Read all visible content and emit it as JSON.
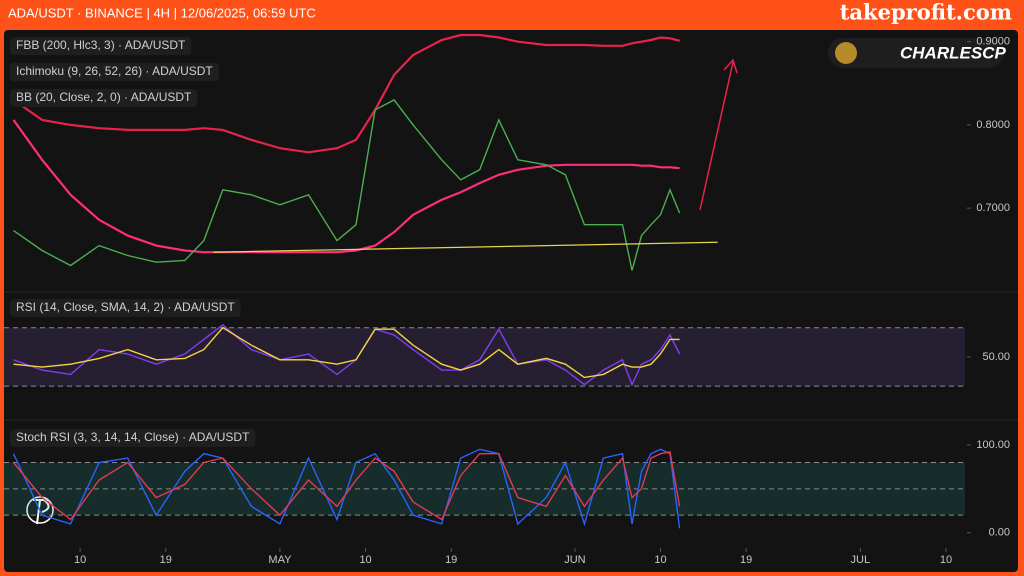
{
  "header": "ADA/USDT · BINANCE | 4H | 12/06/2025, 06:59 UTC",
  "brand": "takeprofit.com",
  "watermark": "CHARLESCP",
  "chart_data": [
    {
      "type": "line",
      "indicators": [
        "FBB (200, Hlc3, 3) · ADA/USDT",
        "Ichimoku (9, 26, 52, 26) · ADA/USDT",
        "BB (20, Close, 2, 0) · ADA/USDT"
      ],
      "x": [
        "2025-04-03",
        "2025-04-06",
        "2025-04-09",
        "2025-04-12",
        "2025-04-15",
        "2025-04-18",
        "2025-04-21",
        "2025-04-23",
        "2025-04-25",
        "2025-04-28",
        "2025-05-01",
        "2025-05-04",
        "2025-05-07",
        "2025-05-09",
        "2025-05-11",
        "2025-05-13",
        "2025-05-15",
        "2025-05-18",
        "2025-05-20",
        "2025-05-22",
        "2025-05-24",
        "2025-05-26",
        "2025-05-29",
        "2025-05-31",
        "2025-06-02",
        "2025-06-04",
        "2025-06-06",
        "2025-06-07",
        "2025-06-08",
        "2025-06-09",
        "2025-06-10",
        "2025-06-11",
        "2025-06-12"
      ],
      "series": [
        {
          "color": "#e8234a",
          "values": [
            0.83,
            0.806,
            0.8,
            0.796,
            0.794,
            0.794,
            0.794,
            0.796,
            0.794,
            0.782,
            0.772,
            0.767,
            0.772,
            0.782,
            0.818,
            0.86,
            0.884,
            0.902,
            0.908,
            0.908,
            0.905,
            0.9,
            0.896,
            0.896,
            0.896,
            0.895,
            0.895,
            0.898,
            0.9,
            0.902,
            0.905,
            0.904,
            0.901
          ]
        },
        {
          "color": "#ff2d7a",
          "values": [
            0.806,
            0.758,
            0.716,
            0.686,
            0.667,
            0.655,
            0.649,
            0.647,
            0.647,
            0.647,
            0.647,
            0.647,
            0.647,
            0.649,
            0.655,
            0.671,
            0.692,
            0.71,
            0.719,
            0.73,
            0.74,
            0.746,
            0.751,
            0.752,
            0.752,
            0.752,
            0.752,
            0.752,
            0.751,
            0.751,
            0.749,
            0.749,
            0.748
          ]
        },
        {
          "color": "#4caf50",
          "values": [
            0.673,
            0.649,
            0.631,
            0.655,
            0.643,
            0.635,
            0.637,
            0.661,
            0.722,
            0.716,
            0.704,
            0.716,
            0.661,
            0.68,
            0.818,
            0.83,
            0.8,
            0.758,
            0.734,
            0.746,
            0.806,
            0.758,
            0.752,
            0.74,
            0.68,
            0.68,
            0.68,
            0.625,
            0.667,
            0.68,
            0.692,
            0.722,
            0.694
          ]
        }
      ],
      "trendline": {
        "color": "#e8d44d",
        "x": [
          "2025-04-24",
          "2025-06-16"
        ],
        "values": [
          0.647,
          0.659
        ]
      },
      "xlim": [
        "2025-04-02",
        "2025-07-12"
      ],
      "ylim": [
        0.604,
        0.914
      ],
      "yticks": [
        {
          "value": 0.7,
          "label": "0.7000"
        },
        {
          "value": 0.8,
          "label": "0.8000"
        },
        {
          "value": 0.9,
          "label": "0.9000"
        }
      ]
    },
    {
      "type": "line",
      "title": "RSI (14, Close, SMA, 14, 2) · ADA/USDT",
      "x": [
        "2025-04-03",
        "2025-04-06",
        "2025-04-09",
        "2025-04-12",
        "2025-04-15",
        "2025-04-18",
        "2025-04-21",
        "2025-04-23",
        "2025-04-25",
        "2025-04-28",
        "2025-05-01",
        "2025-05-04",
        "2025-05-07",
        "2025-05-09",
        "2025-05-11",
        "2025-05-13",
        "2025-05-15",
        "2025-05-18",
        "2025-05-20",
        "2025-05-22",
        "2025-05-24",
        "2025-05-26",
        "2025-05-29",
        "2025-05-31",
        "2025-06-02",
        "2025-06-04",
        "2025-06-06",
        "2025-06-07",
        "2025-06-08",
        "2025-06-09",
        "2025-06-10",
        "2025-06-11",
        "2025-06-12"
      ],
      "series": [
        {
          "color": "#7e3ff2",
          "values": [
            48,
            41,
            38,
            55,
            52,
            45,
            52,
            62,
            72,
            55,
            48,
            52,
            38,
            48,
            69,
            65,
            55,
            41,
            41,
            48,
            69,
            45,
            48,
            41,
            31,
            41,
            48,
            31,
            45,
            48,
            55,
            65,
            52
          ]
        },
        {
          "color": "#f5d442",
          "values": [
            45,
            43,
            45,
            49,
            55,
            48,
            49,
            55,
            70,
            58,
            48,
            48,
            45,
            48,
            69,
            69,
            58,
            45,
            41,
            45,
            55,
            45,
            49,
            45,
            36,
            38,
            45,
            43,
            43,
            45,
            52,
            62,
            62
          ]
        }
      ],
      "band": {
        "color": "#7e57c2",
        "values": [
          30,
          70
        ]
      },
      "xlim": [
        "2025-04-02",
        "2025-07-12"
      ],
      "ylim": [
        15,
        89
      ],
      "yticks": [
        {
          "value": 50,
          "label": "50.00"
        }
      ]
    },
    {
      "type": "line",
      "title": "Stoch RSI (3, 3, 14, 14, Close) · ADA/USDT",
      "x": [
        "2025-04-03",
        "2025-04-06",
        "2025-04-09",
        "2025-04-12",
        "2025-04-15",
        "2025-04-18",
        "2025-04-21",
        "2025-04-23",
        "2025-04-25",
        "2025-04-28",
        "2025-05-01",
        "2025-05-04",
        "2025-05-07",
        "2025-05-09",
        "2025-05-11",
        "2025-05-13",
        "2025-05-15",
        "2025-05-18",
        "2025-05-20",
        "2025-05-22",
        "2025-05-24",
        "2025-05-26",
        "2025-05-29",
        "2025-05-31",
        "2025-06-02",
        "2025-06-04",
        "2025-06-06",
        "2025-06-07",
        "2025-06-08",
        "2025-06-09",
        "2025-06-10",
        "2025-06-11",
        "2025-06-12"
      ],
      "series": [
        {
          "color": "#2962ff",
          "values": [
            90,
            20,
            10,
            80,
            85,
            20,
            70,
            90,
            85,
            30,
            10,
            85,
            15,
            80,
            90,
            60,
            20,
            10,
            85,
            95,
            90,
            10,
            40,
            80,
            10,
            85,
            90,
            10,
            70,
            90,
            95,
            90,
            5
          ]
        },
        {
          "color": "#e53950",
          "values": [
            80,
            40,
            15,
            60,
            80,
            40,
            55,
            80,
            85,
            50,
            20,
            60,
            30,
            60,
            85,
            70,
            35,
            15,
            65,
            90,
            90,
            40,
            30,
            65,
            30,
            60,
            85,
            40,
            50,
            85,
            90,
            92,
            30
          ]
        }
      ],
      "band": {
        "color": "#26a69a",
        "values": [
          20,
          50,
          80
        ]
      },
      "xlim": [
        "2025-04-02",
        "2025-07-12"
      ],
      "ylim": [
        -14,
        117
      ],
      "yticks": [
        {
          "value": 0,
          "label": "0.00"
        },
        {
          "value": 100,
          "label": "100.00"
        }
      ],
      "xticks": [
        {
          "value": "2025-04-10",
          "label": "10"
        },
        {
          "value": "2025-04-19",
          "label": "19"
        },
        {
          "value": "2025-05-01",
          "label": "MAY"
        },
        {
          "value": "2025-05-10",
          "label": "10"
        },
        {
          "value": "2025-05-19",
          "label": "19"
        },
        {
          "value": "2025-06-01",
          "label": "JUN"
        },
        {
          "value": "2025-06-10",
          "label": "10"
        },
        {
          "value": "2025-06-19",
          "label": "19"
        },
        {
          "value": "2025-07-01",
          "label": "JUL"
        },
        {
          "value": "2025-07-10",
          "label": "10"
        }
      ]
    }
  ]
}
